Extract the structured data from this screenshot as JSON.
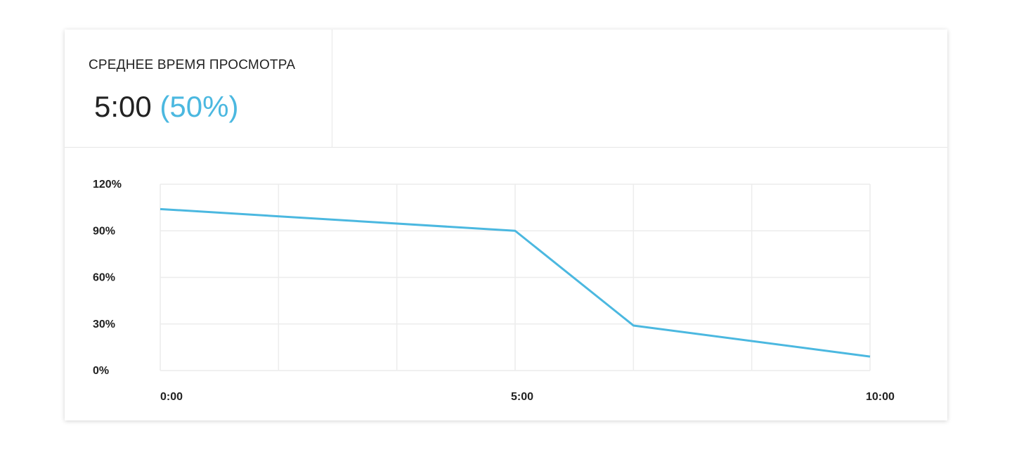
{
  "card": {
    "metric_label": "СРЕДНЕЕ ВРЕМЯ ПРОСМОТРА",
    "value": "5:00",
    "percent": "(50%)"
  },
  "chart_data": {
    "type": "line",
    "x": [
      0,
      300,
      400,
      600
    ],
    "series": [
      {
        "color": "#4bb8e0",
        "values": [
          104,
          90,
          29,
          9
        ]
      }
    ],
    "xlim": [
      0,
      600
    ],
    "xticks": [
      {
        "value": 0,
        "label": "0:00"
      },
      {
        "value": 300,
        "label": "5:00"
      },
      {
        "value": 600,
        "label": "10:00"
      }
    ],
    "xgrid": [
      100,
      200,
      400,
      500
    ],
    "ylim": [
      0,
      120
    ],
    "yticks": [
      {
        "value": 0,
        "label": "0%"
      },
      {
        "value": 30,
        "label": "30%"
      },
      {
        "value": 60,
        "label": "60%"
      },
      {
        "value": 90,
        "label": "90%"
      },
      {
        "value": 120,
        "label": "120%"
      }
    ],
    "grid": true
  }
}
